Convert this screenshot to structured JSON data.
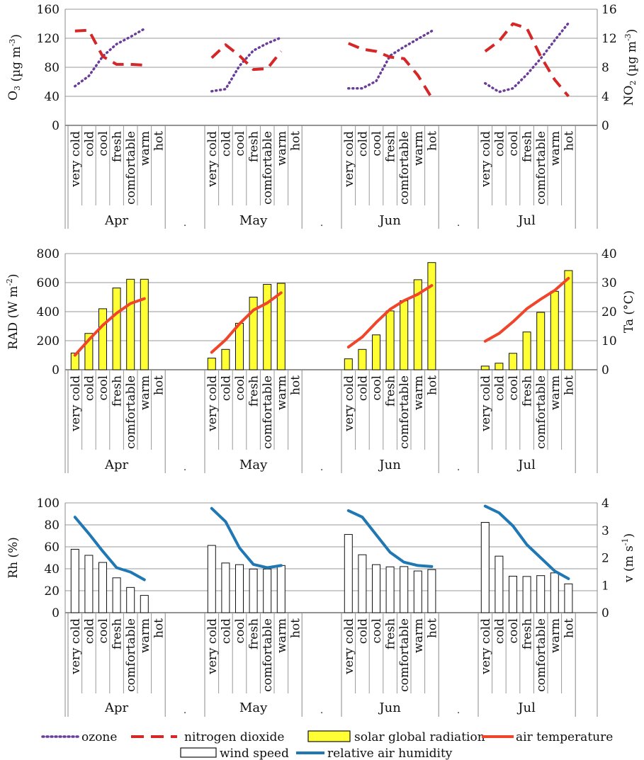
{
  "chart_data": [
    {
      "type": "line",
      "ylabel": "O3 (µg m-3)",
      "y2label": "NO2 (µg m-3)",
      "ylim": [
        0,
        160
      ],
      "yticks": [
        0,
        40,
        80,
        120,
        160
      ],
      "y2lim": [
        0,
        16
      ],
      "y2ticks": [
        0,
        4,
        8,
        12,
        16
      ],
      "months": [
        "Apr",
        "May",
        "Jun",
        "Jul"
      ],
      "separator": ".",
      "categories": [
        "very cold",
        "cold",
        "cool",
        "fresh",
        "comfortable",
        "warm",
        "hot"
      ],
      "series": [
        {
          "name": "ozone",
          "axis": "left",
          "style": "dotted",
          "color": "#6a3d9a",
          "values": [
            [
              54,
              68,
              95,
              112,
              122,
              133,
              null
            ],
            [
              47,
              50,
              82,
              103,
              113,
              121,
              null
            ],
            [
              51,
              51,
              61,
              96,
              108,
              119,
              130
            ],
            [
              58,
              46,
              51,
              70,
              92,
              117,
              141
            ]
          ]
        },
        {
          "name": "nitrogen dioxide",
          "axis": "right",
          "style": "dashed",
          "color": "#d62728",
          "values": [
            [
              13.0,
              13.1,
              9.5,
              8.4,
              8.4,
              8.3,
              null
            ],
            [
              9.3,
              11.1,
              9.6,
              7.7,
              7.8,
              10.2,
              null
            ],
            [
              11.3,
              10.5,
              10.2,
              9.4,
              9.2,
              6.9,
              3.8
            ],
            [
              10.2,
              11.6,
              14.0,
              13.4,
              9.5,
              6.3,
              4.0
            ]
          ]
        }
      ]
    },
    {
      "type": "bar",
      "ylabel": "RAD (W m-2)",
      "y2label": "Ta (°C)",
      "ylim": [
        0,
        800
      ],
      "yticks": [
        0,
        200,
        400,
        600,
        800
      ],
      "y2lim": [
        0,
        40
      ],
      "y2ticks": [
        0,
        10,
        20,
        30,
        40
      ],
      "months": [
        "Apr",
        "May",
        "Jun",
        "Jul"
      ],
      "separator": ".",
      "categories": [
        "very cold",
        "cold",
        "cool",
        "fresh",
        "comfortable",
        "warm",
        "hot"
      ],
      "series": [
        {
          "name": "solar global radiation",
          "axis": "left",
          "kind": "bar",
          "color": "#ffff33",
          "values": [
            [
              115,
              250,
              420,
              563,
              623,
              623,
              null
            ],
            [
              80,
              140,
              320,
              500,
              588,
              595,
              null
            ],
            [
              75,
              140,
              240,
              405,
              475,
              620,
              738
            ],
            [
              25,
              45,
              113,
              260,
              395,
              540,
              683
            ]
          ]
        },
        {
          "name": "air temperature",
          "axis": "right",
          "kind": "line",
          "color": "#f0452a",
          "values": [
            [
              5.0,
              10.3,
              15.3,
              19.5,
              22.8,
              24.5,
              null
            ],
            [
              6.0,
              10.3,
              15.8,
              20.5,
              23.0,
              26.5,
              null
            ],
            [
              7.8,
              11.3,
              16.3,
              20.8,
              23.8,
              26.0,
              29.0
            ],
            [
              9.8,
              12.5,
              16.5,
              21.0,
              24.3,
              27.3,
              31.5
            ]
          ]
        }
      ]
    },
    {
      "type": "bar",
      "ylabel": "Rh (%)",
      "y2label": "v (m s-1)",
      "ylim": [
        0,
        100
      ],
      "yticks": [
        0,
        20,
        40,
        60,
        80,
        100
      ],
      "y2lim": [
        0,
        4
      ],
      "y2ticks": [
        0,
        1,
        2,
        3,
        4
      ],
      "months": [
        "Apr",
        "May",
        "Jun",
        "Jul"
      ],
      "separator": ".",
      "categories": [
        "very cold",
        "cold",
        "cool",
        "fresh",
        "comfortable",
        "warm",
        "hot"
      ],
      "series": [
        {
          "name": "wind speed",
          "axis": "right",
          "kind": "bar",
          "color": "#ffffff",
          "values": [
            [
              2.31,
              2.09,
              1.83,
              1.27,
              0.92,
              0.63,
              null
            ],
            [
              2.45,
              1.81,
              1.75,
              1.59,
              1.59,
              1.72,
              null
            ],
            [
              2.85,
              2.11,
              1.75,
              1.67,
              1.68,
              1.52,
              1.57
            ],
            [
              3.29,
              2.06,
              1.33,
              1.32,
              1.35,
              1.45,
              1.05
            ]
          ]
        },
        {
          "name": "relative air humidity",
          "axis": "left",
          "kind": "line",
          "color": "#1f77b4",
          "values": [
            [
              87,
              72,
              56,
              41,
              37,
              30,
              null
            ],
            [
              95,
              83,
              59,
              44,
              41,
              43,
              null
            ],
            [
              93,
              87,
              71,
              55,
              46,
              43,
              42
            ],
            [
              97,
              91,
              79,
              62,
              50,
              38,
              31
            ]
          ]
        }
      ]
    }
  ],
  "legend": {
    "ozone": "ozone",
    "nitrogen_dioxide": "nitrogen dioxide",
    "solar_global_radiation": "solar global radiation",
    "air_temperature": "air temperature",
    "wind_speed": "wind speed",
    "relative_air_humidity": "relative air humidity"
  }
}
